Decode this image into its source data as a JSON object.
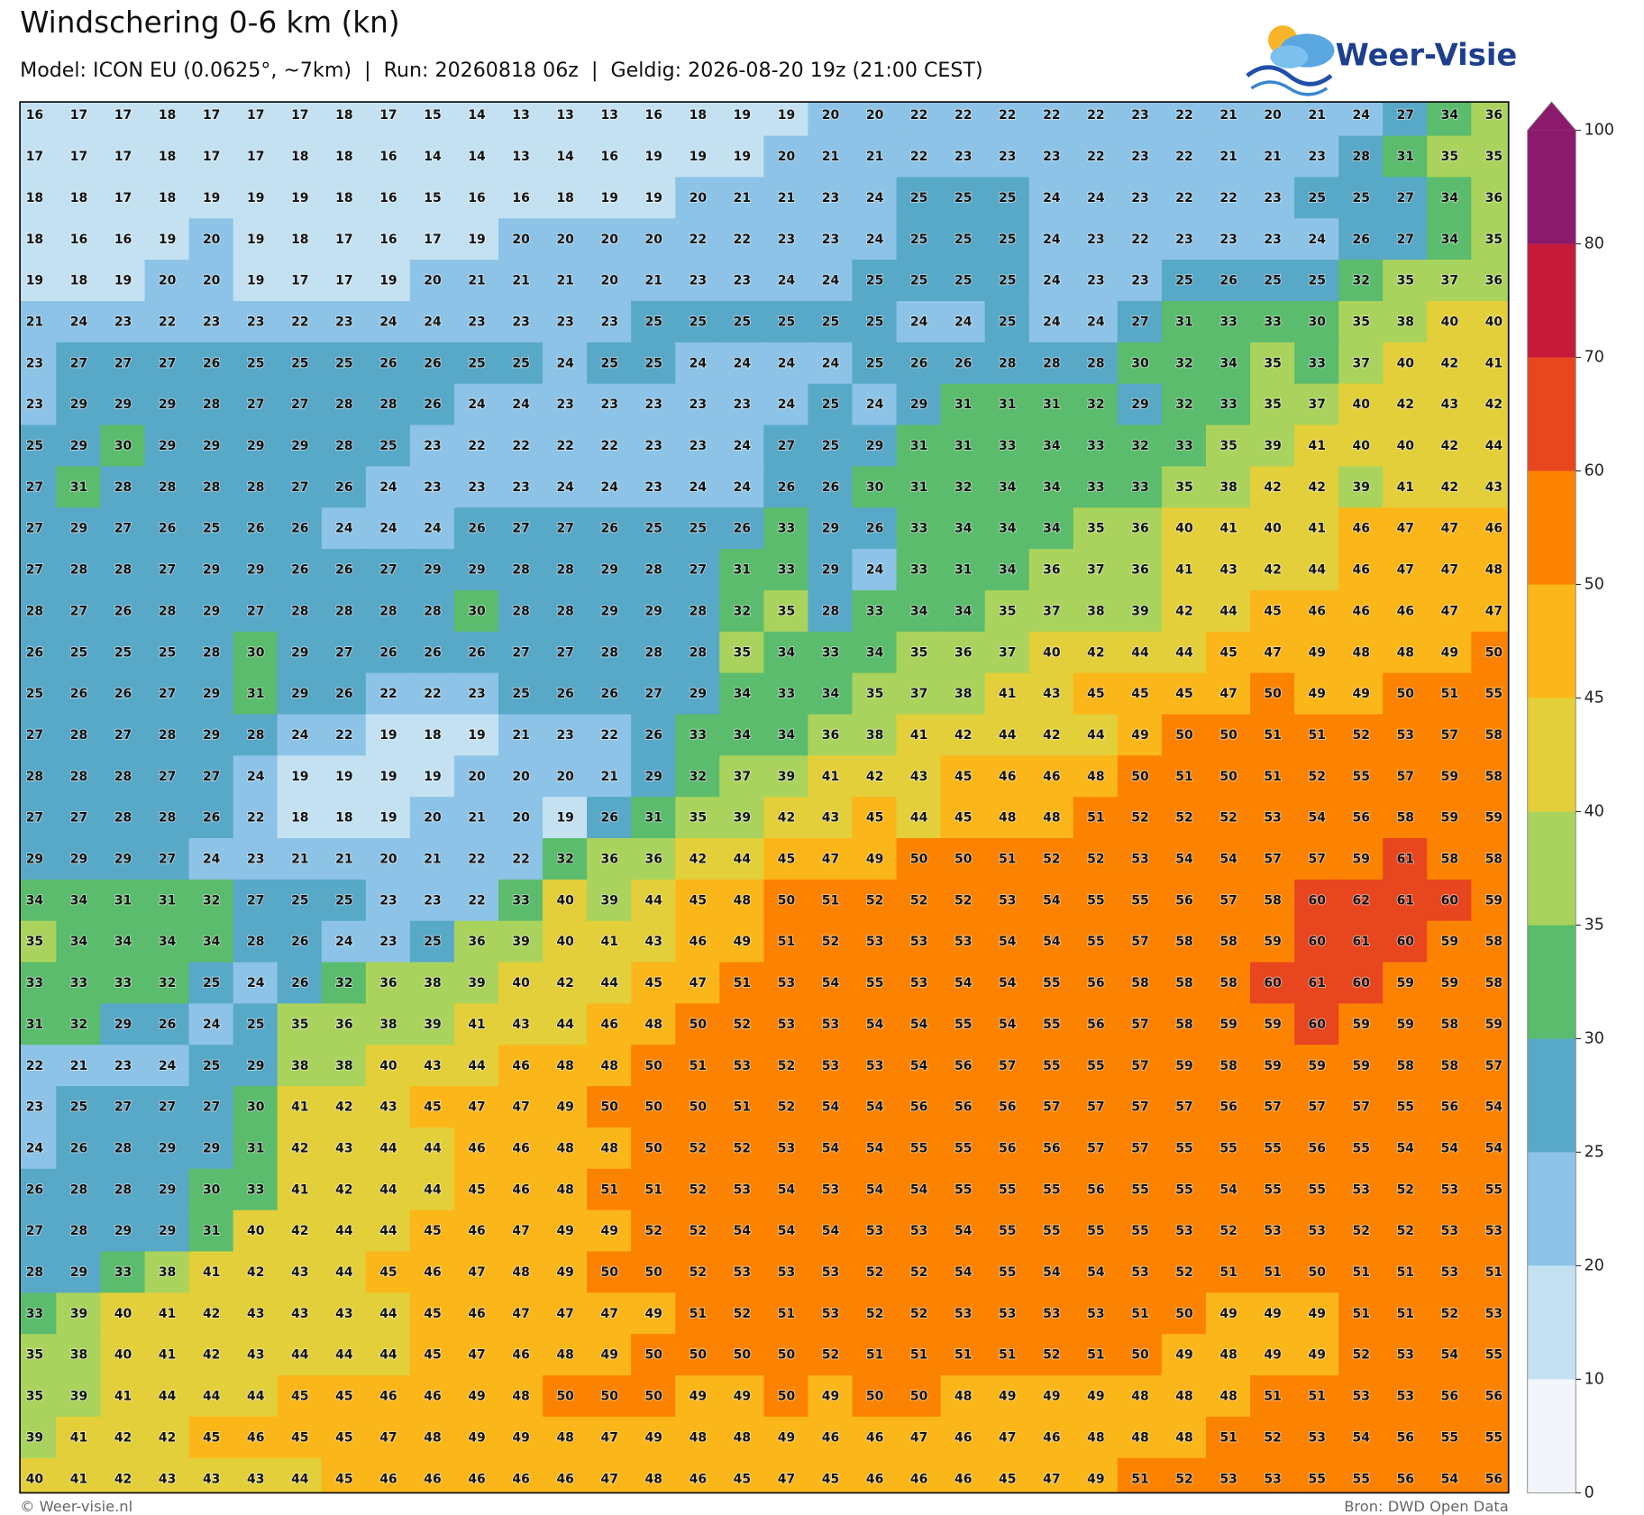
{
  "header": {
    "title": "Windschering 0-6 km (kn)",
    "subtitle": "Model: ICON EU (0.0625°, ~7km)  |  Run: 20260818 06z  |  Geldig: 2026-08-20 19z (21:00 CEST)",
    "logo": "Weer-Visie"
  },
  "map": {
    "grid": [
      [
        16,
        17,
        17,
        18,
        17,
        17,
        17,
        18,
        17,
        15,
        14,
        13,
        13,
        13,
        16,
        18,
        19,
        19,
        20,
        20,
        22,
        22,
        22,
        22,
        22,
        23,
        22,
        21,
        20,
        21,
        24,
        27,
        34,
        36
      ],
      [
        17,
        17,
        17,
        18,
        17,
        17,
        18,
        18,
        16,
        14,
        14,
        13,
        14,
        16,
        19,
        19,
        19,
        20,
        21,
        21,
        22,
        23,
        23,
        23,
        22,
        23,
        22,
        21,
        21,
        23,
        28,
        31,
        35,
        35
      ],
      [
        18,
        18,
        17,
        18,
        19,
        19,
        19,
        18,
        16,
        15,
        16,
        16,
        18,
        19,
        19,
        20,
        21,
        21,
        23,
        24,
        25,
        25,
        25,
        24,
        24,
        23,
        22,
        22,
        23,
        25,
        25,
        27,
        34,
        36
      ],
      [
        18,
        16,
        16,
        19,
        20,
        19,
        18,
        17,
        16,
        17,
        19,
        20,
        20,
        20,
        20,
        22,
        22,
        23,
        23,
        24,
        25,
        25,
        25,
        24,
        23,
        22,
        23,
        23,
        23,
        24,
        26,
        27,
        34,
        35
      ],
      [
        19,
        18,
        19,
        20,
        20,
        19,
        17,
        17,
        19,
        20,
        21,
        21,
        21,
        20,
        21,
        23,
        23,
        24,
        24,
        25,
        25,
        25,
        25,
        24,
        23,
        23,
        25,
        26,
        25,
        25,
        32,
        35,
        37,
        36
      ],
      [
        21,
        24,
        23,
        22,
        23,
        23,
        22,
        23,
        24,
        24,
        23,
        23,
        23,
        23,
        25,
        25,
        25,
        25,
        25,
        25,
        24,
        24,
        25,
        24,
        24,
        27,
        31,
        33,
        33,
        30,
        35,
        38,
        40,
        40
      ],
      [
        23,
        27,
        27,
        27,
        26,
        25,
        25,
        25,
        26,
        26,
        25,
        25,
        24,
        25,
        25,
        24,
        24,
        24,
        24,
        25,
        26,
        26,
        28,
        28,
        28,
        30,
        32,
        34,
        35,
        33,
        37,
        40,
        42,
        41
      ],
      [
        23,
        29,
        29,
        29,
        28,
        27,
        27,
        28,
        28,
        26,
        24,
        24,
        23,
        23,
        23,
        23,
        23,
        24,
        25,
        24,
        29,
        31,
        31,
        31,
        32,
        29,
        32,
        33,
        35,
        37,
        40,
        42,
        43,
        42
      ],
      [
        25,
        29,
        30,
        29,
        29,
        29,
        29,
        28,
        25,
        23,
        22,
        22,
        22,
        22,
        23,
        23,
        24,
        27,
        25,
        29,
        31,
        31,
        33,
        34,
        33,
        32,
        33,
        35,
        39,
        41,
        40,
        40,
        42,
        44
      ],
      [
        27,
        31,
        28,
        28,
        28,
        28,
        27,
        26,
        24,
        23,
        23,
        23,
        24,
        24,
        23,
        24,
        24,
        26,
        26,
        30,
        31,
        32,
        34,
        34,
        33,
        33,
        35,
        38,
        42,
        42,
        39,
        41,
        42,
        43
      ],
      [
        27,
        29,
        27,
        26,
        25,
        26,
        26,
        24,
        24,
        24,
        26,
        27,
        27,
        26,
        25,
        25,
        26,
        33,
        29,
        26,
        33,
        34,
        34,
        34,
        35,
        36,
        40,
        41,
        40,
        41,
        46,
        47,
        47,
        46
      ],
      [
        27,
        28,
        28,
        27,
        29,
        29,
        26,
        26,
        27,
        29,
        29,
        28,
        28,
        29,
        28,
        27,
        31,
        33,
        29,
        24,
        33,
        31,
        34,
        36,
        37,
        36,
        41,
        43,
        42,
        44,
        46,
        47,
        47,
        48
      ],
      [
        28,
        27,
        26,
        28,
        29,
        27,
        28,
        28,
        28,
        28,
        30,
        28,
        28,
        29,
        29,
        28,
        32,
        35,
        28,
        33,
        34,
        34,
        35,
        37,
        38,
        39,
        42,
        44,
        45,
        46,
        46,
        46,
        47,
        47
      ],
      [
        26,
        25,
        25,
        25,
        28,
        30,
        29,
        27,
        26,
        26,
        26,
        27,
        27,
        28,
        28,
        28,
        35,
        34,
        33,
        34,
        35,
        36,
        37,
        40,
        42,
        44,
        44,
        45,
        47,
        49,
        48,
        48,
        49,
        50
      ],
      [
        25,
        26,
        26,
        27,
        29,
        31,
        29,
        26,
        22,
        22,
        23,
        25,
        26,
        26,
        27,
        29,
        34,
        33,
        34,
        35,
        37,
        38,
        41,
        43,
        45,
        45,
        45,
        47,
        50,
        49,
        49,
        50,
        51,
        55
      ],
      [
        27,
        28,
        27,
        28,
        29,
        28,
        24,
        22,
        19,
        18,
        19,
        21,
        23,
        22,
        26,
        33,
        34,
        34,
        36,
        38,
        41,
        42,
        44,
        42,
        44,
        49,
        50,
        50,
        51,
        51,
        52,
        53,
        57,
        58
      ],
      [
        28,
        28,
        28,
        27,
        27,
        24,
        19,
        19,
        19,
        19,
        20,
        20,
        20,
        21,
        29,
        32,
        37,
        39,
        41,
        42,
        43,
        45,
        46,
        46,
        48,
        50,
        51,
        50,
        51,
        52,
        55,
        57,
        59,
        58
      ],
      [
        27,
        27,
        28,
        28,
        26,
        22,
        18,
        18,
        19,
        20,
        21,
        20,
        19,
        26,
        31,
        35,
        39,
        42,
        43,
        45,
        44,
        45,
        48,
        48,
        51,
        52,
        52,
        52,
        53,
        54,
        56,
        58,
        59,
        59
      ],
      [
        29,
        29,
        29,
        27,
        24,
        23,
        21,
        21,
        20,
        21,
        22,
        22,
        32,
        36,
        36,
        42,
        44,
        45,
        47,
        49,
        50,
        50,
        51,
        52,
        52,
        53,
        54,
        54,
        57,
        57,
        59,
        61,
        58,
        58
      ],
      [
        34,
        34,
        31,
        31,
        32,
        27,
        25,
        25,
        23,
        23,
        22,
        33,
        40,
        39,
        44,
        45,
        48,
        50,
        51,
        52,
        52,
        52,
        53,
        54,
        55,
        55,
        56,
        57,
        58,
        60,
        62,
        61,
        60,
        59
      ],
      [
        35,
        34,
        34,
        34,
        34,
        28,
        26,
        24,
        23,
        25,
        36,
        39,
        40,
        41,
        43,
        46,
        49,
        51,
        52,
        53,
        53,
        53,
        54,
        54,
        55,
        57,
        58,
        58,
        59,
        60,
        61,
        60,
        59,
        58
      ],
      [
        33,
        33,
        33,
        32,
        25,
        24,
        26,
        32,
        36,
        38,
        39,
        40,
        42,
        44,
        45,
        47,
        51,
        53,
        54,
        55,
        53,
        54,
        54,
        55,
        56,
        58,
        58,
        58,
        60,
        61,
        60,
        59,
        59,
        58
      ],
      [
        31,
        32,
        29,
        26,
        24,
        25,
        35,
        36,
        38,
        39,
        41,
        43,
        44,
        46,
        48,
        50,
        52,
        53,
        53,
        54,
        54,
        55,
        54,
        55,
        56,
        57,
        58,
        59,
        59,
        60,
        59,
        59,
        58,
        59
      ],
      [
        22,
        21,
        23,
        24,
        25,
        29,
        38,
        38,
        40,
        43,
        44,
        46,
        48,
        48,
        50,
        51,
        53,
        52,
        53,
        53,
        54,
        56,
        57,
        55,
        55,
        57,
        59,
        58,
        59,
        59,
        59,
        58,
        58,
        57
      ],
      [
        23,
        25,
        27,
        27,
        27,
        30,
        41,
        42,
        43,
        45,
        47,
        47,
        49,
        50,
        50,
        50,
        51,
        52,
        54,
        54,
        56,
        56,
        56,
        57,
        57,
        57,
        57,
        56,
        57,
        57,
        57,
        55,
        56,
        54
      ],
      [
        24,
        26,
        28,
        29,
        29,
        31,
        42,
        43,
        44,
        44,
        46,
        46,
        48,
        48,
        50,
        52,
        52,
        53,
        54,
        54,
        55,
        55,
        56,
        56,
        57,
        57,
        55,
        55,
        55,
        56,
        55,
        54,
        54,
        54
      ],
      [
        26,
        28,
        28,
        29,
        30,
        33,
        41,
        42,
        44,
        44,
        45,
        46,
        48,
        51,
        51,
        52,
        53,
        54,
        53,
        54,
        54,
        55,
        55,
        55,
        56,
        55,
        55,
        54,
        55,
        55,
        53,
        52,
        53,
        55
      ],
      [
        27,
        28,
        29,
        29,
        31,
        40,
        42,
        44,
        44,
        45,
        46,
        47,
        49,
        49,
        52,
        52,
        54,
        54,
        54,
        53,
        53,
        54,
        55,
        55,
        55,
        55,
        53,
        52,
        53,
        53,
        52,
        52,
        53,
        53
      ],
      [
        28,
        29,
        33,
        38,
        41,
        42,
        43,
        44,
        45,
        46,
        47,
        48,
        49,
        50,
        50,
        52,
        53,
        53,
        53,
        52,
        52,
        54,
        55,
        54,
        54,
        53,
        52,
        51,
        51,
        50,
        51,
        51,
        53,
        51
      ],
      [
        33,
        39,
        40,
        41,
        42,
        43,
        43,
        43,
        44,
        45,
        46,
        47,
        47,
        47,
        49,
        51,
        52,
        51,
        53,
        52,
        52,
        53,
        53,
        53,
        53,
        51,
        50,
        49,
        49,
        49,
        51,
        51,
        52,
        53
      ],
      [
        35,
        38,
        40,
        41,
        42,
        43,
        44,
        44,
        44,
        45,
        47,
        46,
        48,
        49,
        50,
        50,
        50,
        50,
        52,
        51,
        51,
        51,
        51,
        52,
        51,
        50,
        49,
        48,
        49,
        49,
        52,
        53,
        54,
        55
      ],
      [
        35,
        39,
        41,
        44,
        44,
        44,
        45,
        45,
        46,
        46,
        49,
        48,
        50,
        50,
        50,
        49,
        49,
        50,
        49,
        50,
        50,
        48,
        49,
        49,
        49,
        48,
        48,
        48,
        51,
        51,
        53,
        53,
        56,
        56
      ],
      [
        39,
        41,
        42,
        42,
        45,
        46,
        45,
        45,
        47,
        48,
        49,
        49,
        48,
        47,
        49,
        48,
        48,
        49,
        46,
        46,
        47,
        46,
        47,
        46,
        48,
        48,
        48,
        51,
        52,
        53,
        54,
        56,
        55,
        55
      ],
      [
        40,
        41,
        42,
        43,
        43,
        43,
        44,
        45,
        46,
        46,
        46,
        46,
        46,
        47,
        48,
        46,
        45,
        47,
        45,
        46,
        46,
        46,
        45,
        47,
        49,
        51,
        52,
        53,
        53,
        55,
        55,
        56,
        54,
        56
      ]
    ]
  },
  "colorbar": {
    "levels": [
      0,
      10,
      20,
      25,
      30,
      35,
      40,
      45,
      50,
      60,
      70,
      80,
      100
    ],
    "colors": [
      "#f2f6fa",
      "#c4e1f2",
      "#8cc3e6",
      "#58a8c8",
      "#5abc6c",
      "#a9d35c",
      "#e3cf3a",
      "#fbb619",
      "#fc8302",
      "#e8461e",
      "#c61a3b",
      "#8b1a6c"
    ],
    "extend": "max"
  },
  "footer": {
    "left": "© Weer-visie.nl",
    "right": "Bron: DWD Open Data"
  }
}
